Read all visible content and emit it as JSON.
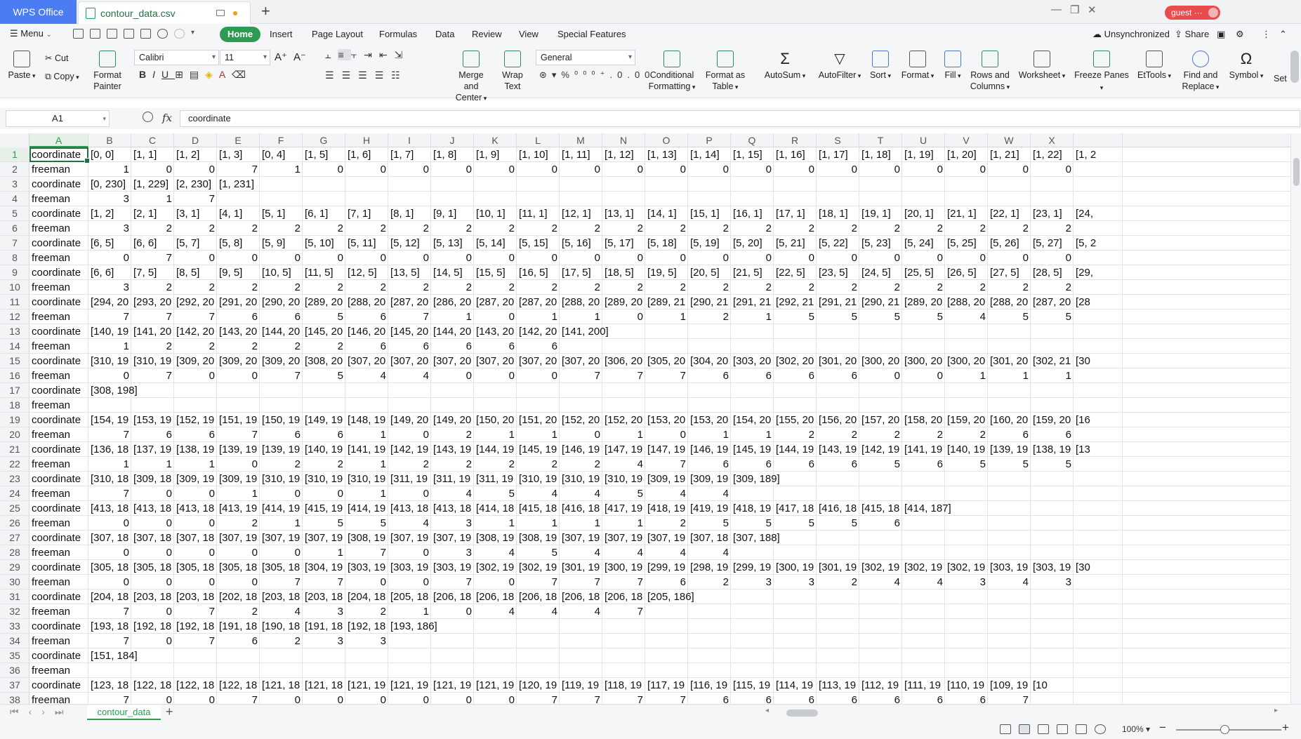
{
  "titlebar": {
    "app_tab": "WPS Office",
    "file_tab": "contour_data.csv",
    "user": "guest ···"
  },
  "menubar": {
    "menu_label": "Menu",
    "tabs": [
      "Home",
      "Insert",
      "Page Layout",
      "Formulas",
      "Data",
      "Review",
      "View",
      "Special Features"
    ],
    "active_tab": "Home",
    "sync_status": "Unsynchronized",
    "share_label": "Share"
  },
  "ribbon": {
    "paste": "Paste",
    "cut": "Cut",
    "copy": "Copy",
    "format_painter": [
      "Format",
      "Painter"
    ],
    "font_name": "Calibri",
    "font_size": "11",
    "merge": [
      "Merge and",
      "Center"
    ],
    "wrap": [
      "Wrap",
      "Text"
    ],
    "number_format": "General",
    "conditional": [
      "Conditional",
      "Formatting"
    ],
    "format_table": [
      "Format as",
      "Table"
    ],
    "autosum": "AutoSum",
    "autofilter": "AutoFilter",
    "sort": "Sort",
    "format": "Format",
    "fill": "Fill",
    "rows_cols": [
      "Rows and",
      "Columns"
    ],
    "worksheet": "Worksheet",
    "freeze": "Freeze Panes",
    "ettools": "EtTools",
    "find": [
      "Find and",
      "Replace"
    ],
    "symbol": "Symbol",
    "set": "Set"
  },
  "formula_bar": {
    "name_box": "A1",
    "fx": "fx",
    "content": "coordinate"
  },
  "columns": [
    "A",
    "B",
    "C",
    "D",
    "E",
    "F",
    "G",
    "H",
    "I",
    "J",
    "K",
    "L",
    "M",
    "N",
    "O",
    "P",
    "Q",
    "R",
    "S",
    "T",
    "U",
    "V",
    "W",
    "X",
    ""
  ],
  "selected_column": "A",
  "row_numbers": [
    "1",
    "2",
    "3",
    "4",
    "5",
    "6",
    "7",
    "8",
    "9",
    "10",
    "11",
    "12",
    "13",
    "14",
    "15",
    "16",
    "17",
    "18",
    "19",
    "20",
    "21",
    "22",
    "23",
    "24",
    "25",
    "26",
    "27",
    "28",
    "29",
    "30",
    "31",
    "32",
    "33",
    "34",
    "35",
    "36",
    "37",
    "38"
  ],
  "rows": [
    [
      "coordinate",
      "[0, 0]",
      "[1, 1]",
      "[1, 2]",
      "[1, 3]",
      "[0, 4]",
      "[1, 5]",
      "[1, 6]",
      "[1, 7]",
      "[1, 8]",
      "[1, 9]",
      "[1, 10]",
      "[1, 11]",
      "[1, 12]",
      "[1, 13]",
      "[1, 14]",
      "[1, 15]",
      "[1, 16]",
      "[1, 17]",
      "[1, 18]",
      "[1, 19]",
      "[1, 20]",
      "[1, 21]",
      "[1, 22]",
      "[1, 2"
    ],
    [
      "freeman",
      "1",
      "0",
      "0",
      "7",
      "1",
      "0",
      "0",
      "0",
      "0",
      "0",
      "0",
      "0",
      "0",
      "0",
      "0",
      "0",
      "0",
      "0",
      "0",
      "0",
      "0",
      "0",
      "0",
      ""
    ],
    [
      "coordinate",
      "[0, 230]",
      "[1, 229]",
      "[2, 230]",
      "[1, 231]"
    ],
    [
      "freeman",
      "3",
      "1",
      "7"
    ],
    [
      "coordinate",
      "[1, 2]",
      "[2, 1]",
      "[3, 1]",
      "[4, 1]",
      "[5, 1]",
      "[6, 1]",
      "[7, 1]",
      "[8, 1]",
      "[9, 1]",
      "[10, 1]",
      "[11, 1]",
      "[12, 1]",
      "[13, 1]",
      "[14, 1]",
      "[15, 1]",
      "[16, 1]",
      "[17, 1]",
      "[18, 1]",
      "[19, 1]",
      "[20, 1]",
      "[21, 1]",
      "[22, 1]",
      "[23, 1]",
      "[24,"
    ],
    [
      "freeman",
      "3",
      "2",
      "2",
      "2",
      "2",
      "2",
      "2",
      "2",
      "2",
      "2",
      "2",
      "2",
      "2",
      "2",
      "2",
      "2",
      "2",
      "2",
      "2",
      "2",
      "2",
      "2",
      "2",
      ""
    ],
    [
      "coordinate",
      "[6, 5]",
      "[6, 6]",
      "[5, 7]",
      "[5, 8]",
      "[5, 9]",
      "[5, 10]",
      "[5, 11]",
      "[5, 12]",
      "[5, 13]",
      "[5, 14]",
      "[5, 15]",
      "[5, 16]",
      "[5, 17]",
      "[5, 18]",
      "[5, 19]",
      "[5, 20]",
      "[5, 21]",
      "[5, 22]",
      "[5, 23]",
      "[5, 24]",
      "[5, 25]",
      "[5, 26]",
      "[5, 27]",
      "[5, 2"
    ],
    [
      "freeman",
      "0",
      "7",
      "0",
      "0",
      "0",
      "0",
      "0",
      "0",
      "0",
      "0",
      "0",
      "0",
      "0",
      "0",
      "0",
      "0",
      "0",
      "0",
      "0",
      "0",
      "0",
      "0",
      "0",
      ""
    ],
    [
      "coordinate",
      "[6, 6]",
      "[7, 5]",
      "[8, 5]",
      "[9, 5]",
      "[10, 5]",
      "[11, 5]",
      "[12, 5]",
      "[13, 5]",
      "[14, 5]",
      "[15, 5]",
      "[16, 5]",
      "[17, 5]",
      "[18, 5]",
      "[19, 5]",
      "[20, 5]",
      "[21, 5]",
      "[22, 5]",
      "[23, 5]",
      "[24, 5]",
      "[25, 5]",
      "[26, 5]",
      "[27, 5]",
      "[28, 5]",
      "[29,"
    ],
    [
      "freeman",
      "3",
      "2",
      "2",
      "2",
      "2",
      "2",
      "2",
      "2",
      "2",
      "2",
      "2",
      "2",
      "2",
      "2",
      "2",
      "2",
      "2",
      "2",
      "2",
      "2",
      "2",
      "2",
      "2",
      ""
    ],
    [
      "coordinate",
      "[294, 20",
      "[293, 20",
      "[292, 20",
      "[291, 20",
      "[290, 20",
      "[289, 20",
      "[288, 20",
      "[287, 20",
      "[286, 20",
      "[287, 20",
      "[287, 20",
      "[288, 20",
      "[289, 20",
      "[289, 21",
      "[290, 21",
      "[291, 21",
      "[292, 21",
      "[291, 21",
      "[290, 21",
      "[289, 20",
      "[288, 20",
      "[288, 20",
      "[287, 20",
      "[28"
    ],
    [
      "freeman",
      "7",
      "7",
      "7",
      "6",
      "6",
      "5",
      "6",
      "7",
      "1",
      "0",
      "1",
      "1",
      "0",
      "1",
      "2",
      "1",
      "5",
      "5",
      "5",
      "5",
      "4",
      "5",
      "5",
      ""
    ],
    [
      "coordinate",
      "[140, 19",
      "[141, 20",
      "[142, 20",
      "[143, 20",
      "[144, 20",
      "[145, 20",
      "[146, 20",
      "[145, 20",
      "[144, 20",
      "[143, 20",
      "[142, 20",
      "[141, 200]"
    ],
    [
      "freeman",
      "1",
      "2",
      "2",
      "2",
      "2",
      "2",
      "6",
      "6",
      "6",
      "6",
      "6"
    ],
    [
      "coordinate",
      "[310, 19",
      "[310, 19",
      "[309, 20",
      "[309, 20",
      "[309, 20",
      "[308, 20",
      "[307, 20",
      "[307, 20",
      "[307, 20",
      "[307, 20",
      "[307, 20",
      "[307, 20",
      "[306, 20",
      "[305, 20",
      "[304, 20",
      "[303, 20",
      "[302, 20",
      "[301, 20",
      "[300, 20",
      "[300, 20",
      "[300, 20",
      "[301, 20",
      "[302, 21",
      "[30"
    ],
    [
      "freeman",
      "0",
      "7",
      "0",
      "0",
      "7",
      "5",
      "4",
      "4",
      "0",
      "0",
      "0",
      "7",
      "7",
      "7",
      "6",
      "6",
      "6",
      "6",
      "0",
      "0",
      "1",
      "1",
      "1",
      ""
    ],
    [
      "coordinate",
      "[308, 198]"
    ],
    [
      "freeman"
    ],
    [
      "coordinate",
      "[154, 19",
      "[153, 19",
      "[152, 19",
      "[151, 19",
      "[150, 19",
      "[149, 19",
      "[148, 19",
      "[149, 20",
      "[149, 20",
      "[150, 20",
      "[151, 20",
      "[152, 20",
      "[152, 20",
      "[153, 20",
      "[153, 20",
      "[154, 20",
      "[155, 20",
      "[156, 20",
      "[157, 20",
      "[158, 20",
      "[159, 20",
      "[160, 20",
      "[159, 20",
      "[16"
    ],
    [
      "freeman",
      "7",
      "6",
      "6",
      "7",
      "6",
      "6",
      "1",
      "0",
      "2",
      "1",
      "1",
      "0",
      "1",
      "0",
      "1",
      "1",
      "2",
      "2",
      "2",
      "2",
      "2",
      "6",
      "6",
      ""
    ],
    [
      "coordinate",
      "[136, 18",
      "[137, 19",
      "[138, 19",
      "[139, 19",
      "[139, 19",
      "[140, 19",
      "[141, 19",
      "[142, 19",
      "[143, 19",
      "[144, 19",
      "[145, 19",
      "[146, 19",
      "[147, 19",
      "[147, 19",
      "[146, 19",
      "[145, 19",
      "[144, 19",
      "[143, 19",
      "[142, 19",
      "[141, 19",
      "[140, 19",
      "[139, 19",
      "[138, 19",
      "[13"
    ],
    [
      "freeman",
      "1",
      "1",
      "1",
      "0",
      "2",
      "2",
      "1",
      "2",
      "2",
      "2",
      "2",
      "2",
      "4",
      "7",
      "6",
      "6",
      "6",
      "6",
      "5",
      "6",
      "5",
      "5",
      "5",
      ""
    ],
    [
      "coordinate",
      "[310, 18",
      "[309, 18",
      "[309, 19",
      "[309, 19",
      "[310, 19",
      "[310, 19",
      "[310, 19",
      "[311, 19",
      "[311, 19",
      "[311, 19",
      "[310, 19",
      "[310, 19",
      "[310, 19",
      "[309, 19",
      "[309, 19",
      "[309, 189]"
    ],
    [
      "freeman",
      "7",
      "0",
      "0",
      "1",
      "0",
      "0",
      "1",
      "0",
      "4",
      "5",
      "4",
      "4",
      "5",
      "4",
      "4"
    ],
    [
      "coordinate",
      "[413, 18",
      "[413, 18",
      "[413, 18",
      "[413, 19",
      "[414, 19",
      "[415, 19",
      "[414, 19",
      "[413, 18",
      "[413, 18",
      "[414, 18",
      "[415, 18",
      "[416, 18",
      "[417, 19",
      "[418, 19",
      "[419, 19",
      "[418, 19",
      "[417, 18",
      "[416, 18",
      "[415, 18",
      "[414, 187]"
    ],
    [
      "freeman",
      "0",
      "0",
      "0",
      "2",
      "1",
      "5",
      "5",
      "4",
      "3",
      "1",
      "1",
      "1",
      "1",
      "2",
      "5",
      "5",
      "5",
      "5",
      "6"
    ],
    [
      "coordinate",
      "[307, 18",
      "[307, 18",
      "[307, 18",
      "[307, 19",
      "[307, 19",
      "[307, 19",
      "[308, 19",
      "[307, 19",
      "[307, 19",
      "[308, 19",
      "[308, 19",
      "[307, 19",
      "[307, 19",
      "[307, 19",
      "[307, 18",
      "[307, 188]"
    ],
    [
      "freeman",
      "0",
      "0",
      "0",
      "0",
      "0",
      "1",
      "7",
      "0",
      "3",
      "4",
      "5",
      "4",
      "4",
      "4",
      "4"
    ],
    [
      "coordinate",
      "[305, 18",
      "[305, 18",
      "[305, 18",
      "[305, 18",
      "[305, 18",
      "[304, 19",
      "[303, 19",
      "[303, 19",
      "[303, 19",
      "[302, 19",
      "[302, 19",
      "[301, 19",
      "[300, 19",
      "[299, 19",
      "[298, 19",
      "[299, 19",
      "[300, 19",
      "[301, 19",
      "[302, 19",
      "[302, 19",
      "[302, 19",
      "[303, 19",
      "[303, 19",
      "[30"
    ],
    [
      "freeman",
      "0",
      "0",
      "0",
      "0",
      "7",
      "7",
      "0",
      "0",
      "7",
      "0",
      "7",
      "7",
      "7",
      "6",
      "2",
      "3",
      "3",
      "2",
      "4",
      "4",
      "3",
      "4",
      "3",
      ""
    ],
    [
      "coordinate",
      "[204, 18",
      "[203, 18",
      "[203, 18",
      "[202, 18",
      "[203, 18",
      "[203, 18",
      "[204, 18",
      "[205, 18",
      "[206, 18",
      "[206, 18",
      "[206, 18",
      "[206, 18",
      "[206, 18",
      "[205, 186]"
    ],
    [
      "freeman",
      "7",
      "0",
      "7",
      "2",
      "4",
      "3",
      "2",
      "1",
      "0",
      "4",
      "4",
      "4",
      "7"
    ],
    [
      "coordinate",
      "[193, 18",
      "[192, 18",
      "[192, 18",
      "[191, 18",
      "[190, 18",
      "[191, 18",
      "[192, 18",
      "[193, 186]"
    ],
    [
      "freeman",
      "7",
      "0",
      "7",
      "6",
      "2",
      "3",
      "3"
    ],
    [
      "coordinate",
      "[151, 184]"
    ],
    [
      "freeman"
    ],
    [
      "coordinate",
      "[123, 18",
      "[122, 18",
      "[122, 18",
      "[122, 18",
      "[121, 18",
      "[121, 18",
      "[121, 19",
      "[121, 19",
      "[121, 19",
      "[121, 19",
      "[120, 19",
      "[119, 19",
      "[118, 19",
      "[117, 19",
      "[116, 19",
      "[115, 19",
      "[114, 19",
      "[113, 19",
      "[112, 19",
      "[111, 19",
      "[110, 19",
      "[109, 19",
      "[10"
    ],
    [
      "freeman",
      "7",
      "0",
      "0",
      "7",
      "0",
      "0",
      "0",
      "0",
      "0",
      "0",
      "7",
      "7",
      "7",
      "7",
      "6",
      "6",
      "6",
      "6",
      "6",
      "6",
      "6",
      "7",
      ""
    ]
  ],
  "sheet_tab": "contour_data",
  "status": {
    "zoom": "100%"
  }
}
